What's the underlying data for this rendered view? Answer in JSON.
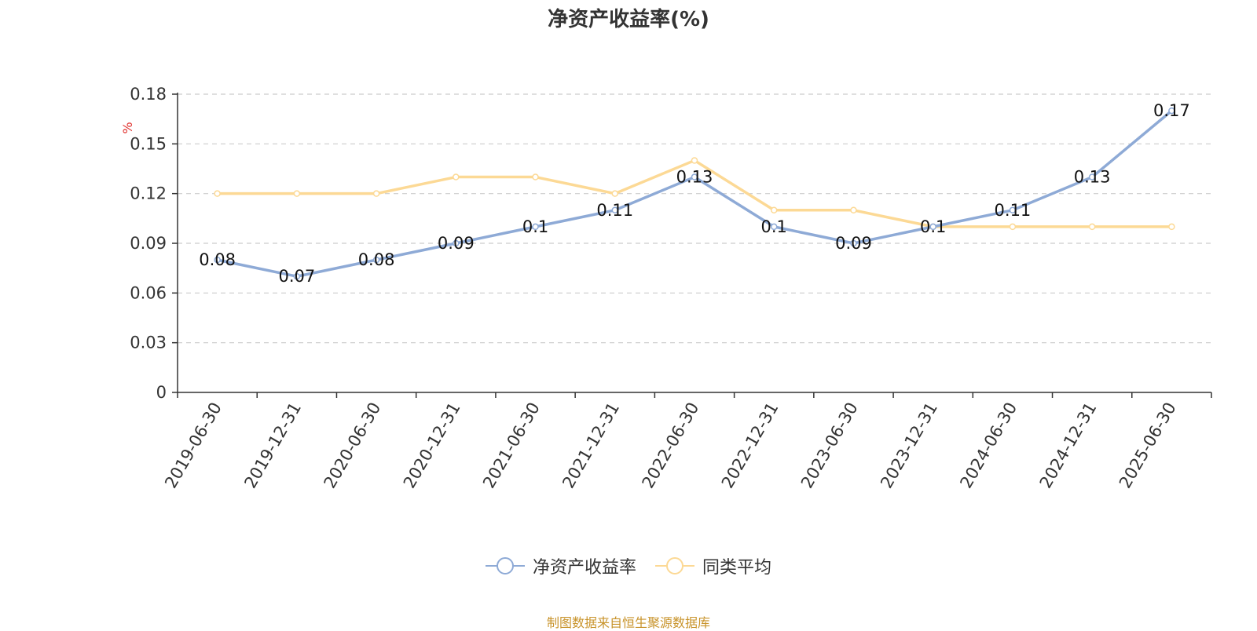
{
  "title": "净资产收益率(%)",
  "source_text": "制图数据来自恒生聚源数据库",
  "colors": {
    "series1": "#8eaad6",
    "series2": "#fcd995",
    "unit": "#e0302d",
    "source": "#c8932a",
    "grid": "#cccccc",
    "axis": "#333333"
  },
  "chart_data": {
    "type": "line",
    "title": "净资产收益率(%)",
    "ylabel": "%",
    "ylim": [
      0,
      0.18
    ],
    "yticks": [
      "0",
      "0.03",
      "0.06",
      "0.09",
      "0.12",
      "0.15",
      "0.18"
    ],
    "grid": true,
    "legend_position": "bottom-center",
    "categories": [
      "2019-06-30",
      "2019-12-31",
      "2020-06-30",
      "2020-12-31",
      "2021-06-30",
      "2021-12-31",
      "2022-06-30",
      "2022-12-31",
      "2023-06-30",
      "2023-12-31",
      "2024-06-30",
      "2024-12-31",
      "2025-06-30"
    ],
    "series": [
      {
        "name": "净资产收益率",
        "values": [
          0.08,
          0.07,
          0.08,
          0.09,
          0.1,
          0.11,
          0.13,
          0.1,
          0.09,
          0.1,
          0.11,
          0.13,
          0.17
        ],
        "labels": [
          "0.08",
          "0.07",
          "0.08",
          "0.09",
          "0.1",
          "0.11",
          "0.13",
          "0.1",
          "0.09",
          "0.1",
          "0.11",
          "0.13",
          "0.17"
        ]
      },
      {
        "name": "同类平均",
        "values": [
          0.12,
          0.12,
          0.12,
          0.13,
          0.13,
          0.12,
          0.14,
          0.11,
          0.11,
          0.1,
          0.1,
          0.1,
          0.1
        ]
      }
    ]
  }
}
